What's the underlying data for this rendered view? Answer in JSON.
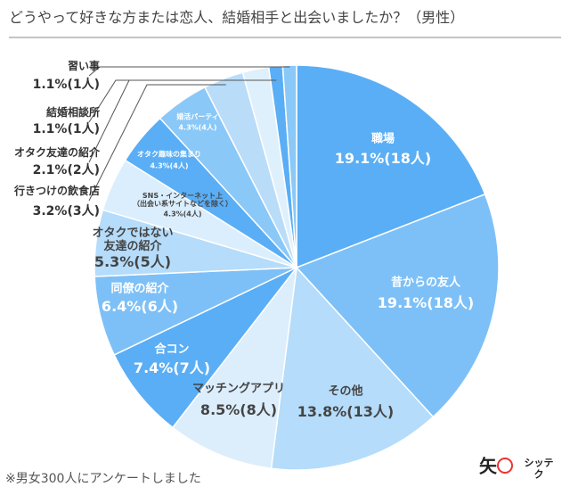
{
  "chart_data": {
    "type": "pie",
    "title": "どうやって好きな方または恋人、結婚相手と出会いましたか？（男性）",
    "categories": [
      "職場",
      "昔からの友人",
      "その他",
      "マッチングアプリ",
      "合コン",
      "同僚の紹介",
      "オタクではない\n友達の紹介",
      "SNS・インターネット上\n（出会い系サイトなどを除く）",
      "オタク趣味の集まり",
      "婚活パーティ",
      "行きつけの飲食店",
      "オタク友達の紹介",
      "結婚相談所",
      "習い事"
    ],
    "values": [
      19.1,
      19.1,
      13.8,
      8.5,
      7.4,
      6.4,
      5.3,
      4.3,
      4.3,
      4.3,
      3.2,
      2.1,
      1.1,
      1.1
    ],
    "value_labels": [
      "19.1%(18人)",
      "19.1%(18人)",
      "13.8%(13人)",
      "8.5%(8人)",
      "7.4%(7人)",
      "6.4%(6人)",
      "5.3%(5人)",
      "4.3%(4人)",
      "4.3%(4人)",
      "4.3%(4人)",
      "3.2%(3人)",
      "2.1%(2人)",
      "1.1%(1人)",
      "1.1%(1人)"
    ],
    "colors": [
      "#5aaef5",
      "#7dc0f7",
      "#b5dcfa",
      "#dcedfc",
      "#5aaef5",
      "#7dc0f7",
      "#b5dcfa",
      "#dbeefd",
      "#5aaef5",
      "#8ac8f7",
      "#b9dcf9",
      "#dff0fd",
      "#5aaef5",
      "#8ac8f7"
    ],
    "footnote": "※男女300人にアンケートしました",
    "brand_mark": "矢",
    "brand": "シッテク"
  }
}
